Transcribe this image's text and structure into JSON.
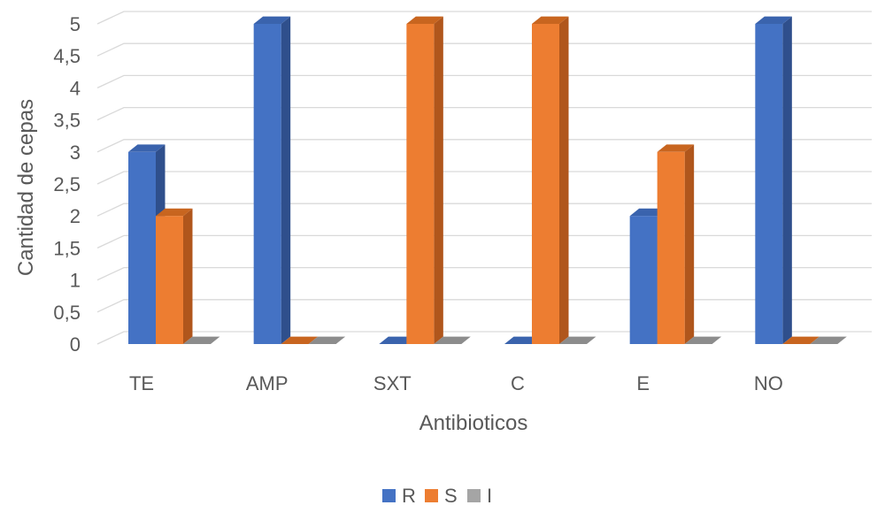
{
  "chart_data": {
    "type": "bar",
    "title": "",
    "xlabel": "Antibioticos",
    "ylabel": "Cantidad de cepas",
    "ylim": [
      0,
      5
    ],
    "ytick_step": 0.5,
    "ytick_labels": [
      "0",
      "0,5",
      "1",
      "1,5",
      "2",
      "2,5",
      "3",
      "3,5",
      "4",
      "4,5",
      "5"
    ],
    "categories": [
      "TE",
      "AMP",
      "SXT",
      "C",
      "E",
      "NO"
    ],
    "series": [
      {
        "name": "R",
        "values": [
          3,
          5,
          0,
          0,
          2,
          5
        ],
        "color": "#4472C4",
        "side_color": "#2F4F8C",
        "top_color": "#3A63AD"
      },
      {
        "name": "S",
        "values": [
          2,
          0,
          5,
          5,
          3,
          0
        ],
        "color": "#ED7D31",
        "side_color": "#B0561C",
        "top_color": "#C8651F"
      },
      {
        "name": "I",
        "values": [
          0,
          0,
          0,
          0,
          0,
          0
        ],
        "color": "#A5A5A5",
        "side_color": "#7A7A7A",
        "top_color": "#8C8C8C"
      }
    ],
    "grid": true,
    "legend_position": "bottom",
    "style": "3d-clustered-column"
  }
}
